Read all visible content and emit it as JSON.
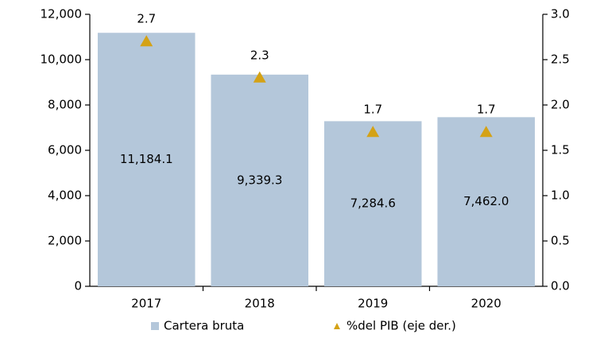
{
  "chart_data": {
    "type": "bar",
    "categories": [
      "2017",
      "2018",
      "2019",
      "2020"
    ],
    "series": [
      {
        "name": "Cartera bruta",
        "type": "bar",
        "color": "#b4c7da",
        "axis": "y",
        "values": [
          11184.1,
          9339.3,
          7284.6,
          7462.0
        ],
        "value_labels": [
          "11,184.1",
          "9,339.3",
          "7,284.6",
          "7,462.0"
        ]
      },
      {
        "name": "%del PIB (eje der.)",
        "type": "scatter",
        "marker": "triangle",
        "color": "#d4a216",
        "axis": "y2",
        "values": [
          2.7,
          2.3,
          1.7,
          1.7
        ]
      }
    ],
    "ylim": [
      0,
      12000
    ],
    "yticks": [
      0,
      {
        "value": 2000,
        "label": "2,000"
      },
      {
        "value": 4000,
        "label": "4,000"
      },
      {
        "value": 6000,
        "label": "6,000"
      },
      {
        "value": 8000,
        "label": "8,000"
      },
      {
        "value": 10000,
        "label": "10,000"
      },
      {
        "value": 12000,
        "label": "12,000"
      }
    ],
    "y2lim": [
      0,
      3
    ],
    "y2ticks": [
      {
        "value": 0,
        "label": "0.0"
      },
      0.5,
      {
        "value": 1,
        "label": "1.0"
      },
      1.5,
      {
        "value": 2,
        "label": "2.0"
      },
      2.5,
      {
        "value": 3,
        "label": "3.0"
      }
    ],
    "grid": false,
    "legend": "bottom"
  }
}
